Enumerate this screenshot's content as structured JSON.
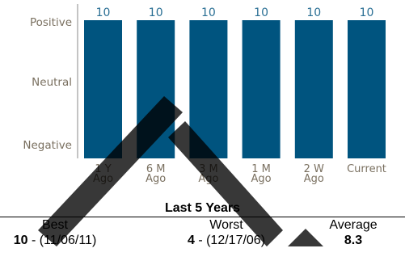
{
  "chart_data": {
    "type": "bar",
    "categories": [
      [
        "1 Y",
        "Ago"
      ],
      [
        "6 M",
        "Ago"
      ],
      [
        "3 M",
        "Ago"
      ],
      [
        "1 M",
        "Ago"
      ],
      [
        "2 W",
        "Ago"
      ],
      [
        "Current"
      ]
    ],
    "values": [
      10,
      10,
      10,
      10,
      10,
      10
    ],
    "y_tick_labels": [
      "Positive",
      "Neutral",
      "Negative"
    ],
    "ylim": [
      0,
      10
    ],
    "colors": {
      "bar": "#00547f",
      "data_label": "#2a6f94",
      "tick_label": "#7a7060"
    }
  },
  "summary": {
    "title": "Last 5 Years",
    "best": {
      "label": "Best",
      "value": "10",
      "date": " - (11/06/11)"
    },
    "worst": {
      "label": "Worst",
      "value": "4",
      "date": " - (12/17/06)"
    },
    "average": {
      "label": "Average",
      "value": "8.3"
    }
  }
}
